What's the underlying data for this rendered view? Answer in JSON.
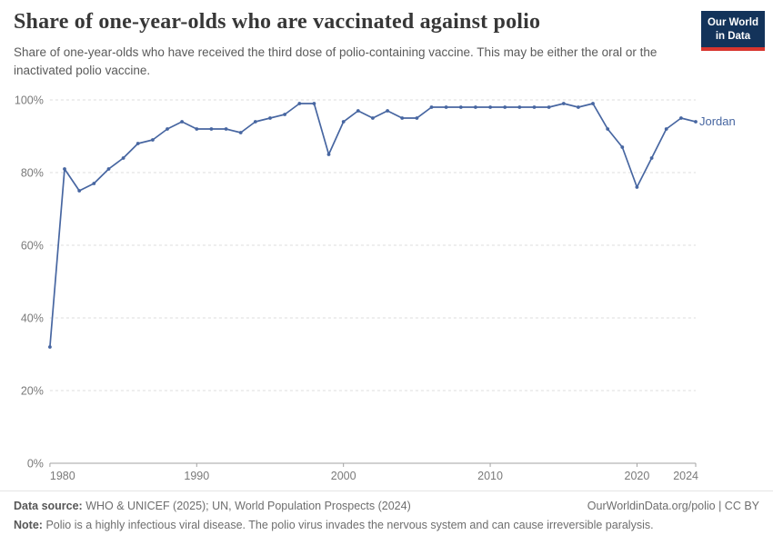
{
  "header": {
    "title": "Share of one-year-olds who are vaccinated against polio",
    "subtitle": "Share of one-year-olds who have received the third dose of polio-containing vaccine. This may be either the oral or the inactivated polio vaccine.",
    "logo_line1": "Our World",
    "logo_line2": "in Data"
  },
  "chart_data": {
    "type": "line",
    "title": "Share of one-year-olds who are vaccinated against polio",
    "xlabel": "",
    "ylabel": "",
    "xlim": [
      1980,
      2024
    ],
    "ylim": [
      0,
      100
    ],
    "xticks": [
      1980,
      1990,
      2000,
      2010,
      2020,
      2024
    ],
    "yticks": [
      0,
      20,
      40,
      60,
      80,
      100
    ],
    "y_format": "percent",
    "grid": "horizontal-dashed",
    "legend_position": "end-of-line-label",
    "x": [
      1980,
      1981,
      1982,
      1983,
      1984,
      1985,
      1986,
      1987,
      1988,
      1989,
      1990,
      1991,
      1992,
      1993,
      1994,
      1995,
      1996,
      1997,
      1998,
      1999,
      2000,
      2001,
      2002,
      2003,
      2004,
      2005,
      2006,
      2007,
      2008,
      2009,
      2010,
      2011,
      2012,
      2013,
      2014,
      2015,
      2016,
      2017,
      2018,
      2019,
      2020,
      2021,
      2022,
      2023,
      2024
    ],
    "series": [
      {
        "name": "Jordan",
        "color": "#4766a1",
        "values": [
          32,
          81,
          75,
          77,
          81,
          84,
          88,
          89,
          92,
          94,
          92,
          92,
          92,
          91,
          94,
          95,
          96,
          99,
          99,
          85,
          94,
          97,
          95,
          97,
          95,
          95,
          98,
          98,
          98,
          98,
          98,
          98,
          98,
          98,
          98,
          99,
          98,
          99,
          92,
          87,
          76,
          84,
          92,
          95,
          94
        ]
      }
    ],
    "colors": {
      "line": "#4766a1",
      "grid": "#dcdcdc",
      "axis": "#a3a3a3",
      "tick_label": "#7a7a7a"
    }
  },
  "footer": {
    "data_source_label": "Data source:",
    "data_source": "WHO & UNICEF (2025); UN, World Population Prospects (2024)",
    "attribution": "OurWorldinData.org/polio | CC BY",
    "note_label": "Note:",
    "note": "Polio is a highly infectious viral disease. The polio virus invades the nervous system and can cause irreversible paralysis."
  }
}
